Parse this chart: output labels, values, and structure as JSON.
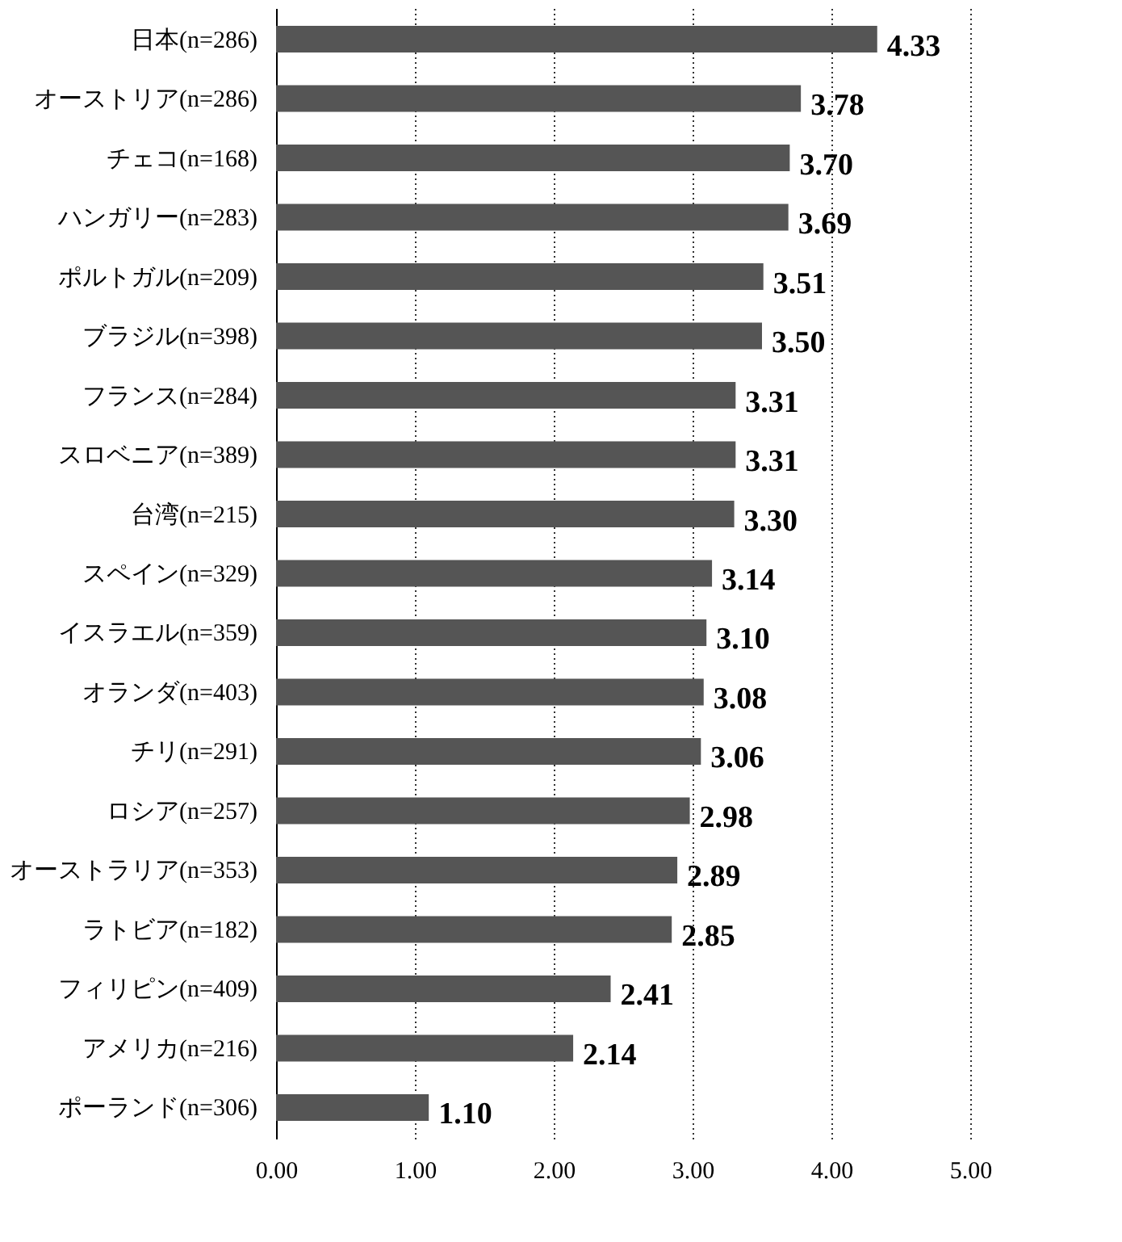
{
  "chart_data": {
    "type": "bar",
    "orientation": "horizontal",
    "categories": [
      "日本(n=286)",
      "オーストリア(n=286)",
      "チェコ(n=168)",
      "ハンガリー(n=283)",
      "ポルトガル(n=209)",
      "ブラジル(n=398)",
      "フランス(n=284)",
      "スロベニア(n=389)",
      "台湾(n=215)",
      "スペイン(n=329)",
      "イスラエル(n=359)",
      "オランダ(n=403)",
      "チリ(n=291)",
      "ロシア(n=257)",
      "オーストラリア(n=353)",
      "ラトビア(n=182)",
      "フィリピン(n=409)",
      "アメリカ(n=216)",
      "ポーランド(n=306)"
    ],
    "values": [
      4.33,
      3.78,
      3.7,
      3.69,
      3.51,
      3.5,
      3.31,
      3.31,
      3.3,
      3.14,
      3.1,
      3.08,
      3.06,
      2.98,
      2.89,
      2.85,
      2.41,
      2.14,
      1.1
    ],
    "value_labels": [
      "4.33",
      "3.78",
      "3.70",
      "3.69",
      "3.51",
      "3.50",
      "3.31",
      "3.31",
      "3.30",
      "3.14",
      "3.10",
      "3.08",
      "3.06",
      "2.98",
      "2.89",
      "2.85",
      "2.41",
      "2.14",
      "1.10"
    ],
    "color": "#555555",
    "xlim": [
      0,
      5
    ],
    "xticks": [
      {
        "value": 0,
        "label": "0.00"
      },
      {
        "value": 1,
        "label": "1.00"
      },
      {
        "value": 2,
        "label": "2.00"
      },
      {
        "value": 3,
        "label": "3.00"
      },
      {
        "value": 4,
        "label": "4.00"
      },
      {
        "value": 5,
        "label": "5.00"
      }
    ],
    "grid": "x"
  }
}
